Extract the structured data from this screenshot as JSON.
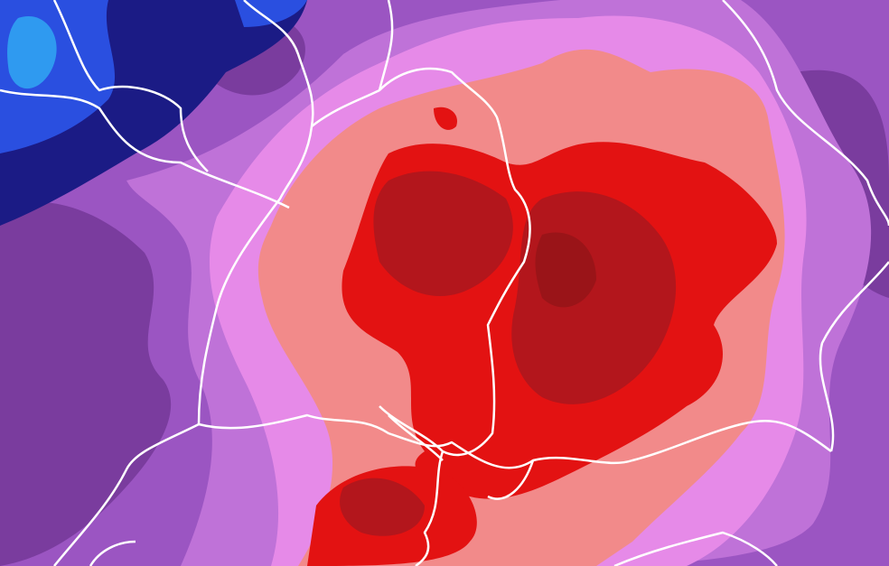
{
  "map": {
    "type": "weather-field-map",
    "colors": {
      "dark_purple": "#7a3c9e",
      "purple": "#9b55c2",
      "light_purple": "#bf72d8",
      "pink": "#e68ae8",
      "salmon": "#f28a8a",
      "red": "#e31212",
      "dark_red": "#b3161c",
      "deep_red": "#9a1418",
      "navy": "#1b1b85",
      "blue": "#2a4fe0",
      "light_blue": "#2f9af0",
      "border": "#ffffff"
    }
  }
}
